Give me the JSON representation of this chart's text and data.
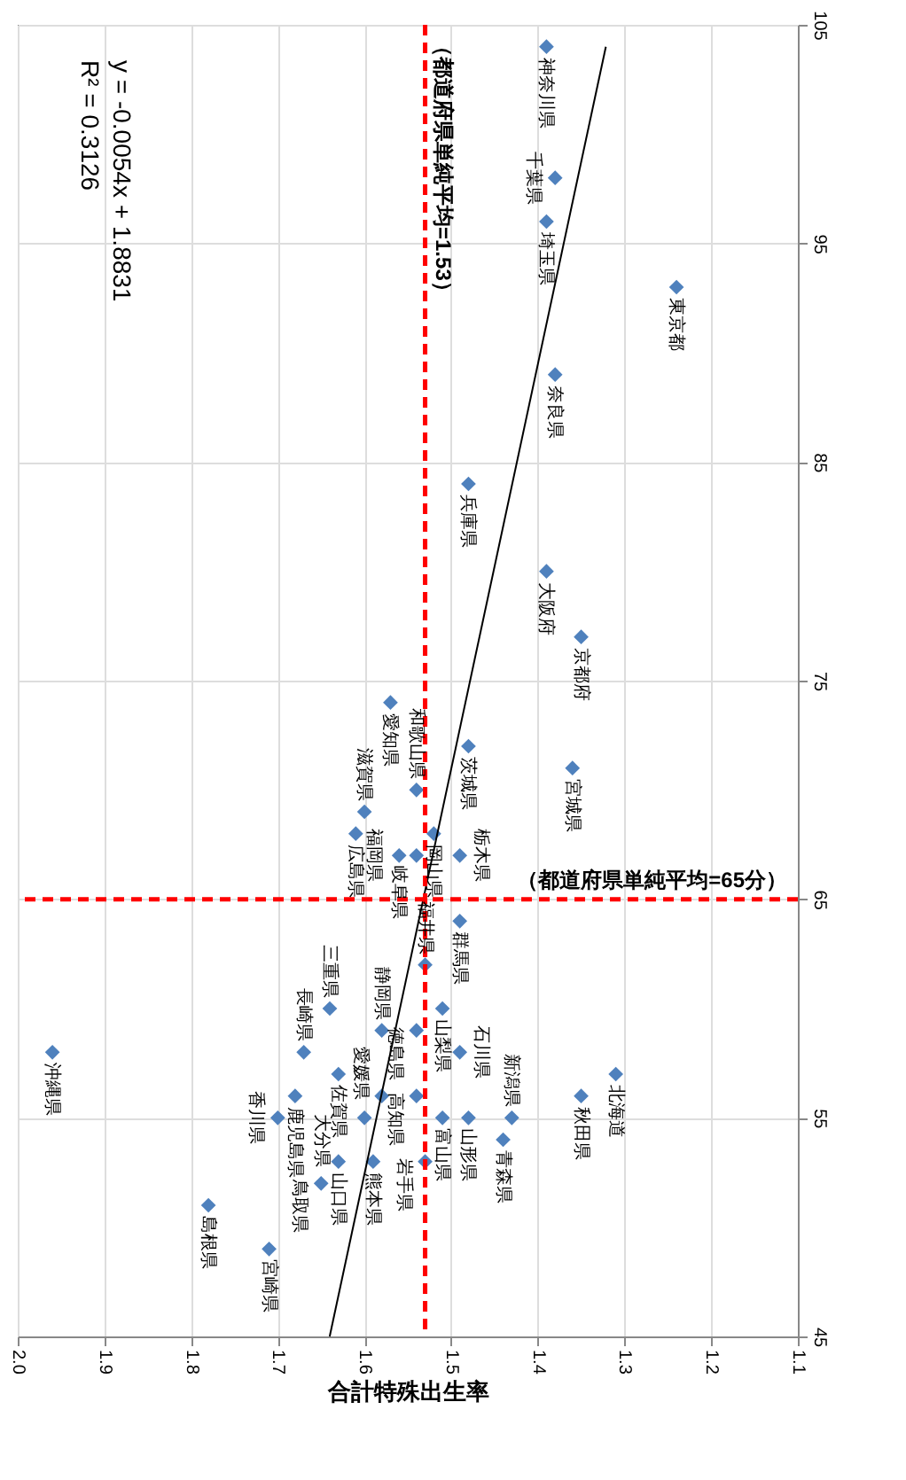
{
  "chart_data": {
    "type": "scatter",
    "xlabel": "合計特殊出生率",
    "xlim": [
      2.0,
      1.1
    ],
    "xticks": [
      {
        "value": 2,
        "label": "2.0"
      },
      1.9,
      1.8,
      1.7,
      1.6,
      1.5,
      1.4,
      1.3,
      1.2,
      1.1
    ],
    "ylim": [
      45,
      105
    ],
    "yticks": [
      45,
      55,
      65,
      75,
      85,
      95,
      105
    ],
    "grid": true,
    "marker": "diamond",
    "series": [
      {
        "color": "#4f81bd",
        "x": [
          1.39,
          1.38,
          1.39,
          1.24,
          1.38,
          1.48,
          1.39,
          1.35,
          1.57,
          1.48,
          1.36,
          1.54,
          1.6,
          1.61,
          1.52,
          1.56,
          1.54,
          1.49,
          1.49,
          1.53,
          1.51,
          1.58,
          1.54,
          1.64,
          1.67,
          1.63,
          1.49,
          1.68,
          1.7,
          1.58,
          1.54,
          1.6,
          1.51,
          1.48,
          1.43,
          1.44,
          1.35,
          1.31,
          1.63,
          1.59,
          1.53,
          1.65,
          1.78,
          1.71,
          1.96
        ],
        "values": [
          104,
          98,
          96,
          93,
          89,
          84,
          80,
          77,
          74,
          72,
          71,
          70,
          69,
          68,
          68,
          67,
          67,
          67,
          64,
          62,
          60,
          59,
          59,
          60,
          58,
          57,
          58,
          56,
          55,
          56,
          56,
          55,
          55,
          55,
          55,
          54,
          56,
          57,
          53,
          53,
          53,
          52,
          51,
          49,
          58
        ]
      },
      {
        "type": "line",
        "marker": "none",
        "color": "#000000",
        "x": [
          1.6401,
          1.3215
        ],
        "values": [
          45,
          104
        ]
      }
    ],
    "ref_lines": [
      {
        "axis": "x",
        "value": 1.53,
        "label": "（都道府県単純平均=1.53）",
        "color": "#ff0000",
        "line_style": "dashed"
      },
      {
        "axis": "y",
        "value": 65,
        "label": "（都道府県単純平均=65分）",
        "color": "#ff0000",
        "line_style": "dashed"
      }
    ],
    "annotations": [
      "y = -0.0054x + 1.8831",
      "R² = 0.3126",
      {
        "text": "神奈川県",
        "x": 1.39,
        "y": 104
      },
      {
        "text": "千葉県",
        "x": 1.38,
        "y": 98
      },
      {
        "text": "埼玉県",
        "x": 1.39,
        "y": 96
      },
      {
        "text": "東京都",
        "x": 1.24,
        "y": 93
      },
      {
        "text": "奈良県",
        "x": 1.38,
        "y": 89
      },
      {
        "text": "兵庫県",
        "x": 1.48,
        "y": 84
      },
      {
        "text": "大阪府",
        "x": 1.39,
        "y": 80
      },
      {
        "text": "京都府",
        "x": 1.35,
        "y": 77
      },
      {
        "text": "愛知県",
        "x": 1.57,
        "y": 74
      },
      {
        "text": "茨城県",
        "x": 1.48,
        "y": 72
      },
      {
        "text": "宮城県",
        "x": 1.36,
        "y": 71
      },
      {
        "text": "和歌山県",
        "x": 1.54,
        "y": 70
      },
      {
        "text": "滋賀県",
        "x": 1.6,
        "y": 69
      },
      {
        "text": "広島県",
        "x": 1.61,
        "y": 68
      },
      {
        "text": "岡山県",
        "x": 1.52,
        "y": 68
      },
      {
        "text": "岐阜県",
        "x": 1.56,
        "y": 67
      },
      {
        "text": "福岡県",
        "x": 1.54,
        "y": 67
      },
      {
        "text": "栃木県",
        "x": 1.49,
        "y": 67
      },
      {
        "text": "群馬県",
        "x": 1.49,
        "y": 64
      },
      {
        "text": "福井県",
        "x": 1.53,
        "y": 62
      },
      {
        "text": "山梨県",
        "x": 1.51,
        "y": 60
      },
      {
        "text": "静岡県",
        "x": 1.58,
        "y": 59
      },
      {
        "text": "徳島県",
        "x": 1.54,
        "y": 59
      },
      {
        "text": "三重県",
        "x": 1.64,
        "y": 60
      },
      {
        "text": "長崎県",
        "x": 1.67,
        "y": 58
      },
      {
        "text": "佐賀県",
        "x": 1.63,
        "y": 57
      },
      {
        "text": "石川県",
        "x": 1.49,
        "y": 58
      },
      {
        "text": "鹿児島県",
        "x": 1.68,
        "y": 56
      },
      {
        "text": "香川県",
        "x": 1.7,
        "y": 55
      },
      {
        "text": "愛媛県",
        "x": 1.58,
        "y": 56
      },
      {
        "text": "高知県",
        "x": 1.54,
        "y": 56
      },
      {
        "text": "大分県",
        "x": 1.6,
        "y": 55
      },
      {
        "text": "富山県",
        "x": 1.51,
        "y": 55
      },
      {
        "text": "山形県",
        "x": 1.48,
        "y": 55
      },
      {
        "text": "新潟県",
        "x": 1.43,
        "y": 55
      },
      {
        "text": "青森県",
        "x": 1.44,
        "y": 54
      },
      {
        "text": "秋田県",
        "x": 1.35,
        "y": 56
      },
      {
        "text": "北海道",
        "x": 1.31,
        "y": 57
      },
      {
        "text": "山口県",
        "x": 1.63,
        "y": 53
      },
      {
        "text": "熊本県",
        "x": 1.59,
        "y": 53
      },
      {
        "text": "岩手県",
        "x": 1.53,
        "y": 53
      },
      {
        "text": "鳥取県",
        "x": 1.65,
        "y": 52
      },
      {
        "text": "島根県",
        "x": 1.78,
        "y": 51
      },
      {
        "text": "宮崎県",
        "x": 1.71,
        "y": 49
      },
      {
        "text": "沖縄県",
        "x": 1.96,
        "y": 58
      }
    ]
  }
}
